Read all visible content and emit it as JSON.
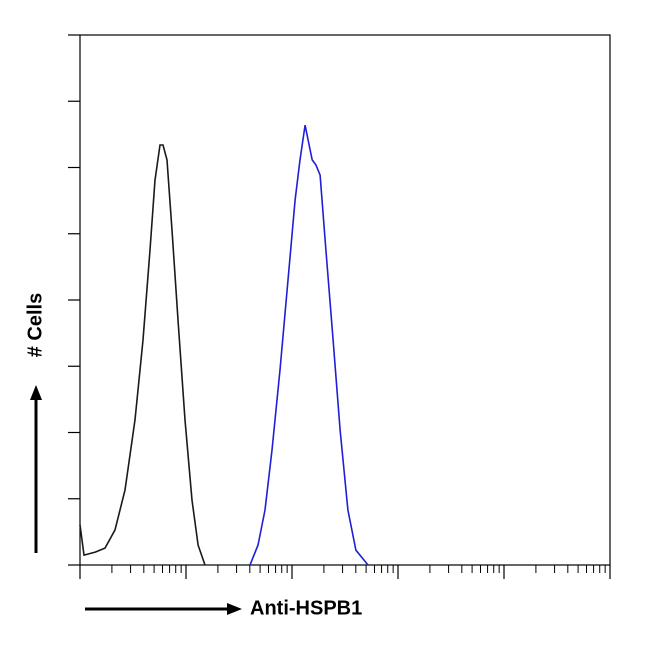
{
  "chart_data": {
    "type": "line",
    "x_label": "Anti-HSPB1",
    "y_label": "# Cells",
    "x_log": true,
    "tick_labels": false,
    "xlim": [
      1,
      100000
    ],
    "xticks": [
      1,
      10,
      100,
      1000,
      10000,
      100000
    ],
    "xminorticks": [
      2,
      3,
      4,
      5,
      6,
      7,
      8,
      9,
      20,
      30,
      40,
      50,
      60,
      70,
      80,
      90,
      200,
      300,
      400,
      500,
      600,
      700,
      800,
      900,
      2000,
      3000,
      4000,
      5000,
      6000,
      7000,
      8000,
      9000,
      20000,
      30000,
      40000,
      50000,
      60000,
      70000,
      80000,
      90000
    ],
    "ylim": [
      0,
      160
    ],
    "yticks": [
      0,
      20,
      40,
      60,
      80,
      100,
      120,
      140,
      160
    ],
    "series": [
      {
        "color": "#1a1a1a",
        "x": [
          1,
          1.09,
          1.39,
          1.72,
          2.14,
          2.66,
          3.3,
          3.93,
          4.57,
          5.1,
          5.69,
          6.07,
          6.62,
          7.38,
          8.41,
          9.79,
          11.4,
          13.0,
          15.1
        ],
        "values": [
          12.1,
          3.0,
          3.9,
          5.1,
          10.6,
          22.6,
          43.8,
          67.9,
          95.1,
          116.2,
          126.8,
          126.8,
          122.3,
          101.1,
          74.0,
          43.8,
          19.6,
          6.0,
          0
        ]
      },
      {
        "color": "#1f1fd6",
        "x": [
          40.2,
          47.8,
          55.6,
          64.8,
          77.1,
          91.7,
          107,
          119,
          133,
          142,
          155,
          168,
          184,
          209,
          244,
          284,
          337,
          401,
          521
        ],
        "values": [
          0,
          6.0,
          16.6,
          34.7,
          58.9,
          86.0,
          110.2,
          122.3,
          132.8,
          128.3,
          122.3,
          120.8,
          117.7,
          95.1,
          67.9,
          40.8,
          16.6,
          4.5,
          0
        ]
      }
    ]
  }
}
